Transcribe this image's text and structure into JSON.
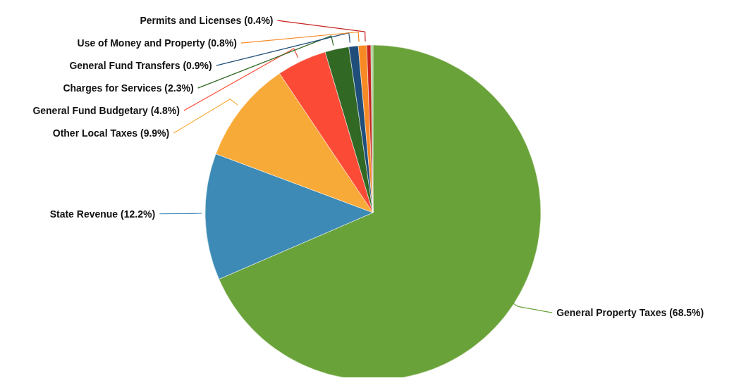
{
  "chart_data": {
    "type": "pie",
    "categories": [
      "General Property Taxes",
      "State Revenue",
      "Other Local Taxes",
      "General Fund Budgetary",
      "Charges for Services",
      "General Fund Transfers",
      "Use of Money and Property",
      "Permits and Licenses",
      null
    ],
    "values": [
      68.5,
      12.2,
      9.9,
      4.8,
      2.3,
      0.9,
      0.8,
      0.4,
      0.2
    ],
    "value_labels": [
      "(68.5%)",
      "(12.2%)",
      "(9.9%)",
      "(4.8%)",
      "(2.3%)",
      "(0.9%)",
      "(0.8%)",
      "(0.4%)",
      null
    ],
    "colors": [
      "#6aa23a",
      "#3c8ab5",
      "#f8aa38",
      "#fb4b37",
      "#316823",
      "#1f4e7a",
      "#f78a24",
      "#c8231e",
      "#a3c98f"
    ]
  }
}
